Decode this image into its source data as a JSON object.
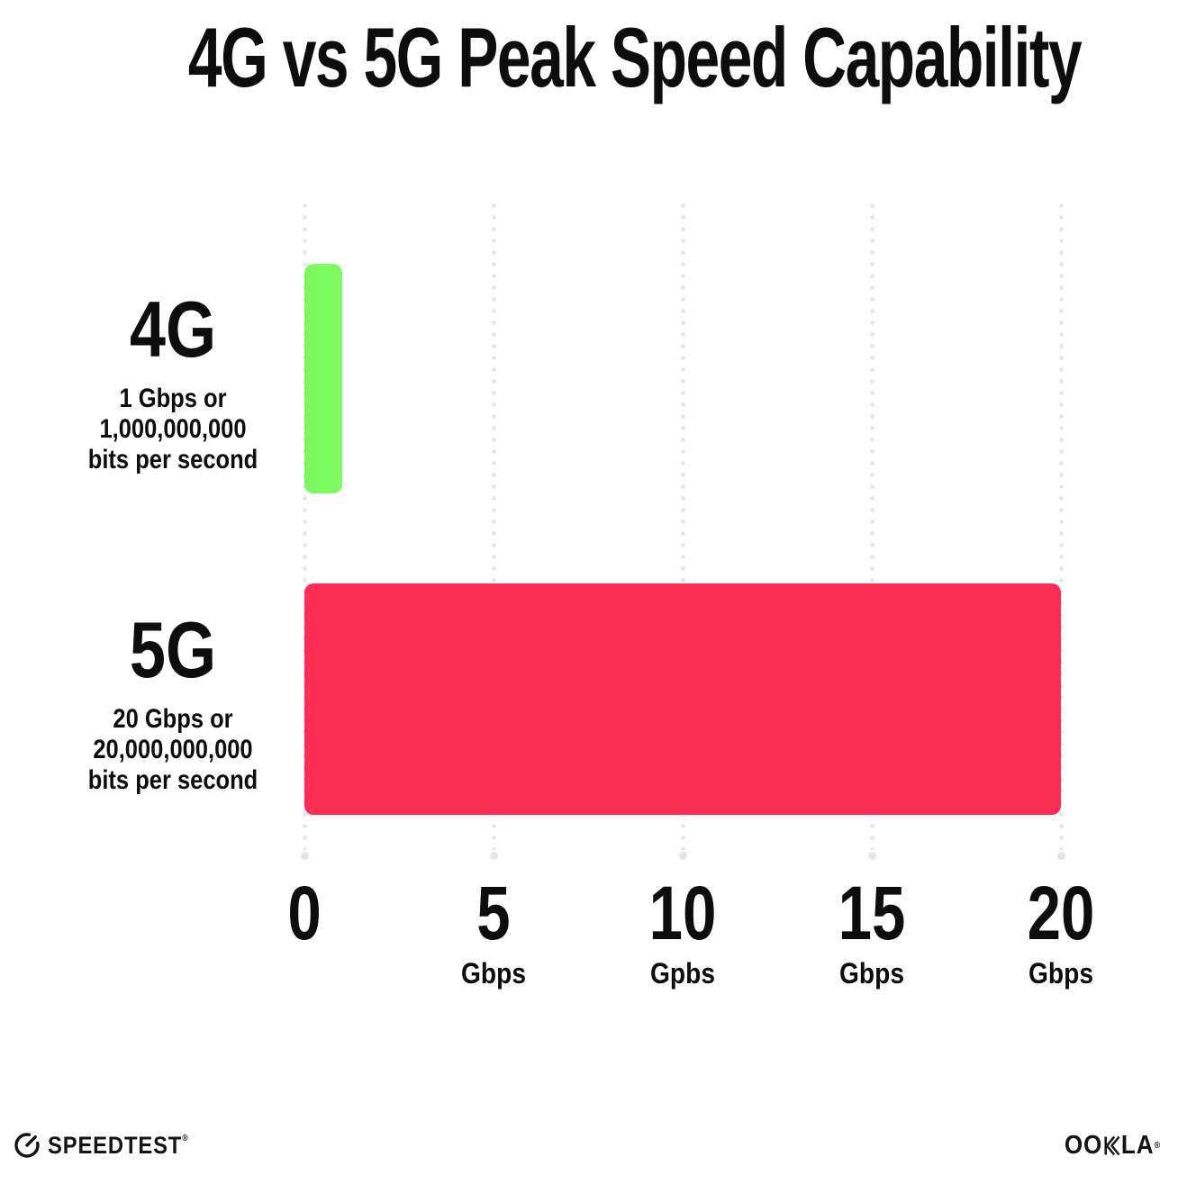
{
  "title": "4G vs 5G Peak Speed Capability",
  "chart_data": {
    "type": "bar",
    "orientation": "horizontal",
    "title": "4G vs 5G Peak Speed Capability",
    "xlabel": "",
    "ylabel": "",
    "xlim": [
      0,
      20
    ],
    "grid": "dotted vertical gridlines ending in larger dot",
    "gridline_color": "#E2E3ED",
    "categories": [
      "4G",
      "5G"
    ],
    "values": [
      1,
      20
    ],
    "unit": "Gbps",
    "bars": [
      {
        "label": "4G",
        "sublabel_lines": [
          "1 Gbps or",
          "1,000,000,000",
          "bits per second"
        ],
        "value_gbps": 1,
        "color": "#7DFA5F"
      },
      {
        "label": "5G",
        "sublabel_lines": [
          "20 Gbps or",
          "20,000,000,000",
          "bits per second"
        ],
        "value_gbps": 20,
        "color": "#FB2D55"
      }
    ],
    "x_ticks": [
      {
        "value": 0,
        "number": "0",
        "unit": ""
      },
      {
        "value": 5,
        "number": "5",
        "unit": "Gbps"
      },
      {
        "value": 10,
        "number": "10",
        "unit": "Gpbs"
      },
      {
        "value": 15,
        "number": "15",
        "unit": "Gbps"
      },
      {
        "value": 20,
        "number": "20",
        "unit": "Gbps"
      }
    ],
    "legend": "none"
  },
  "footer": {
    "speedtest_logo_text": "SPEEDTEST",
    "speedtest_trademark": "®",
    "ookla_logo_prefix": "OO",
    "ookla_logo_suffix": "LA",
    "ookla_logo_text": "OOKLA",
    "ookla_trademark": "®"
  },
  "colors": {
    "background": "#FFFFFF",
    "text": "#0D0D0D",
    "bar_4g_green": "#7DFA5F",
    "bar_5g_pink": "#FB2D55",
    "gridline": "#E2E3ED"
  }
}
